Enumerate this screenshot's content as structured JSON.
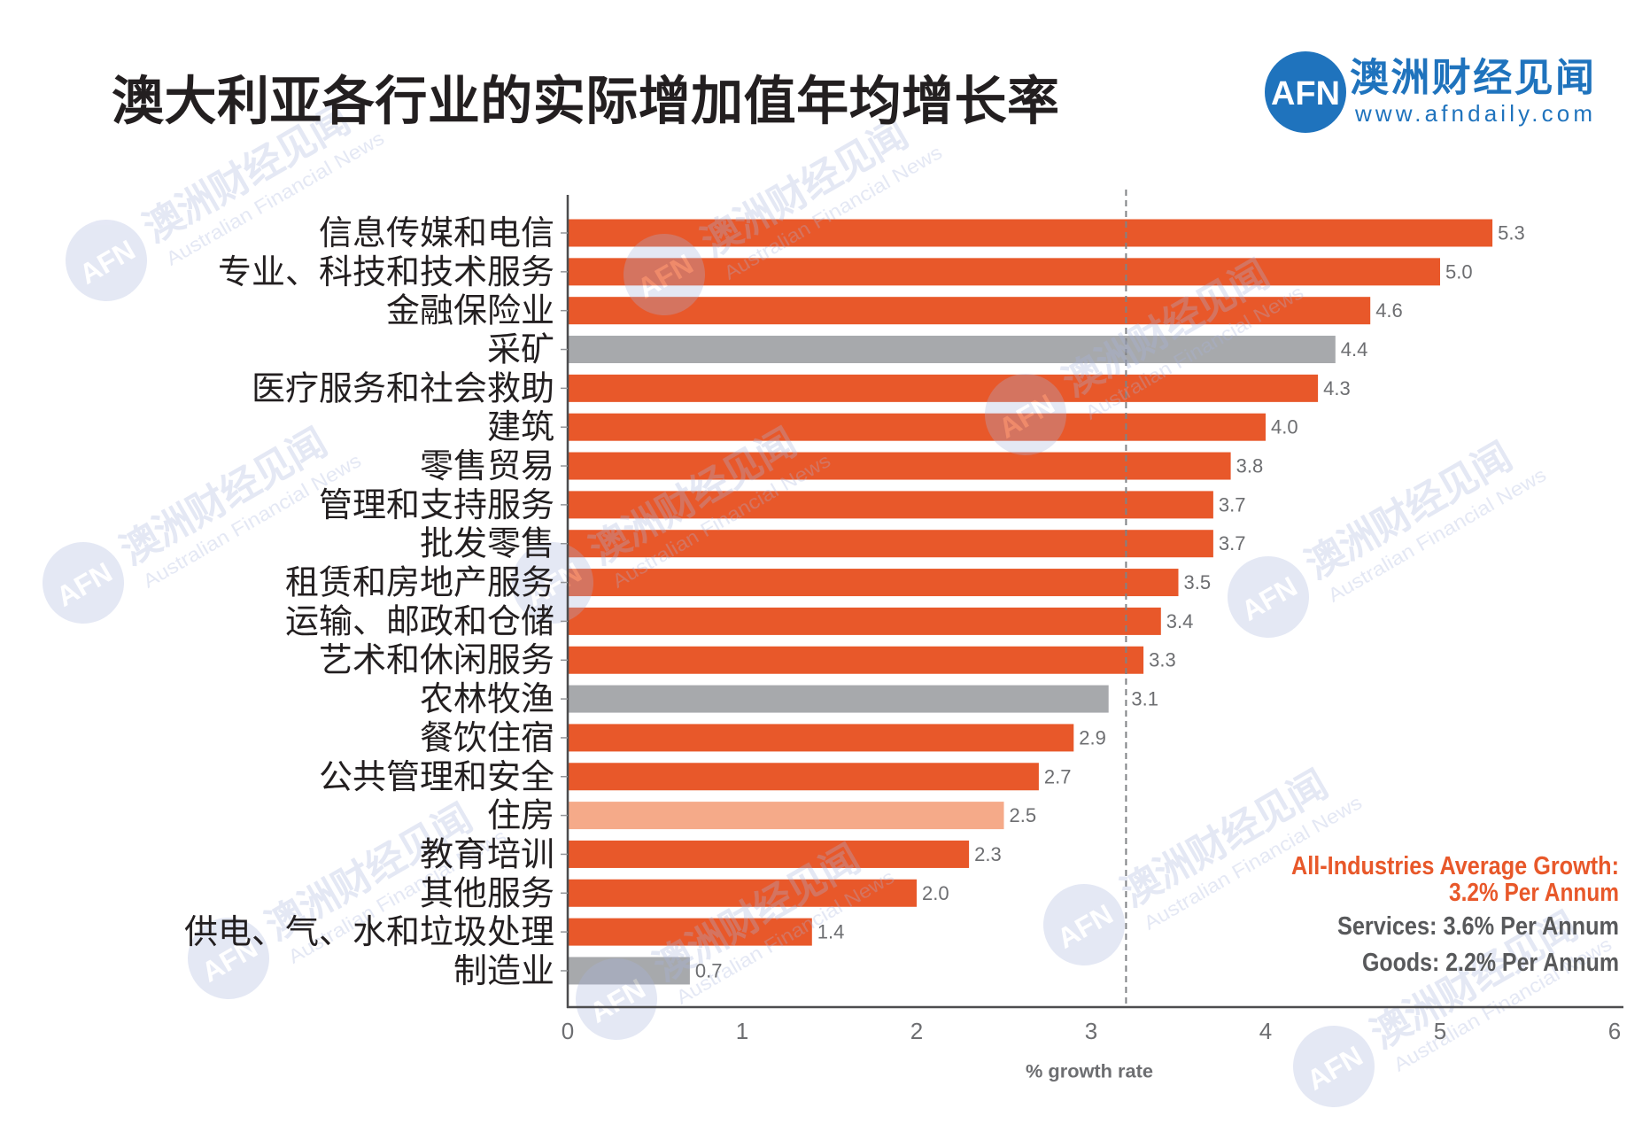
{
  "colors": {
    "brand_blue": "#1f73bd",
    "services_orange": "#e8582a",
    "goods_gray": "#a7a9ac",
    "housing_light_orange": "#f5aa89",
    "note_orange": "#e8582a",
    "note_gray": "#58595b",
    "value_label_gray": "#6d6e71",
    "text_dark": "#231f20"
  },
  "logo": {
    "mark": "AFN",
    "name": "澳洲财经见闻",
    "url": "www.afndaily.com"
  },
  "watermark": {
    "mark": "AFN",
    "name": "澳洲财经见闻",
    "english": "Australian Financial News"
  },
  "chart_data": {
    "type": "bar",
    "title": "澳大利亚各行业的实际增加值年均增长率",
    "categories": [
      "信息传媒和电信",
      "专业、科技和技术服务",
      "金融保险业",
      "采矿",
      "医疗服务和社会救助",
      "建筑",
      "零售贸易",
      "管理和支持服务",
      "批发零售",
      "租赁和房地产服务",
      "运输、邮政和仓储",
      "艺术和休闲服务",
      "农林牧渔",
      "餐饮住宿",
      "公共管理和安全",
      "住房",
      "教育培训",
      "其他服务",
      "供电、气、水和垃圾处理",
      "制造业"
    ],
    "values": [
      5.3,
      5.0,
      4.6,
      4.4,
      4.3,
      4.0,
      3.8,
      3.7,
      3.7,
      3.5,
      3.4,
      3.3,
      3.1,
      2.9,
      2.7,
      2.5,
      2.3,
      2.0,
      1.4,
      0.7
    ],
    "value_labels": [
      "5.3",
      "5.0",
      "4.6",
      "4.4",
      "4.3",
      "4.0",
      "3.8",
      "3.7",
      "3.7",
      "3.5",
      "3.4",
      "3.3",
      "3.1",
      "2.9",
      "2.7",
      "2.5",
      "2.3",
      "2.0",
      "1.4",
      "0.7"
    ],
    "bar_colors": [
      "#e8582a",
      "#e8582a",
      "#e8582a",
      "#a7a9ac",
      "#e8582a",
      "#e8582a",
      "#e8582a",
      "#e8582a",
      "#e8582a",
      "#e8582a",
      "#e8582a",
      "#e8582a",
      "#a7a9ac",
      "#e8582a",
      "#e8582a",
      "#f5aa89",
      "#e8582a",
      "#e8582a",
      "#e8582a",
      "#a7a9ac"
    ],
    "xlabel": "% growth rate",
    "ylabel": "",
    "xlim": [
      0,
      6
    ],
    "xticks": [
      0,
      1,
      2,
      3,
      4,
      5,
      6
    ],
    "reference_line": 3.2,
    "grid": false,
    "notes": {
      "average_label": "All-Industries Average Growth:",
      "average_value": "3.2% Per Annum",
      "services": "Services: 3.6% Per Annum",
      "goods": "Goods: 2.2% Per Annum"
    }
  }
}
